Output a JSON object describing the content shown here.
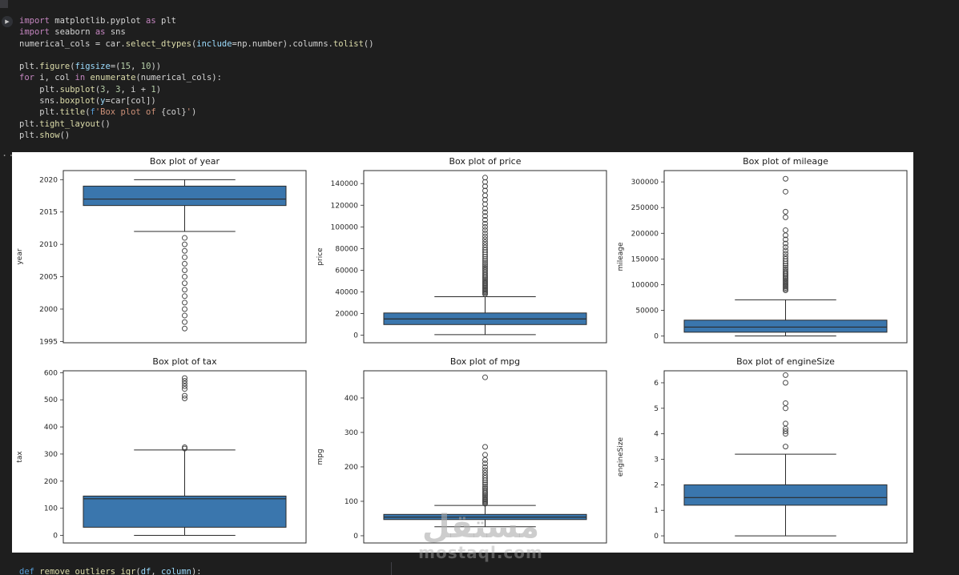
{
  "gutter": {
    "run_icon": "▶",
    "collapse_ellipsis": "..."
  },
  "watermark": {
    "arabic": "مستقل",
    "latin": "mostaql.com"
  },
  "code_cell": {
    "lines": [
      {
        "tokens": [
          [
            "kw",
            "import"
          ],
          [
            "pl",
            " matplotlib.pyplot "
          ],
          [
            "kw",
            "as"
          ],
          [
            "pl",
            " plt"
          ]
        ]
      },
      {
        "tokens": [
          [
            "kw",
            "import"
          ],
          [
            "pl",
            " seaborn "
          ],
          [
            "kw",
            "as"
          ],
          [
            "pl",
            " sns"
          ]
        ]
      },
      {
        "tokens": [
          [
            "pl",
            "numerical_cols = car."
          ],
          [
            "fn",
            "select_dtypes"
          ],
          [
            "pl",
            "("
          ],
          [
            "id",
            "include"
          ],
          [
            "pl",
            "=np.number)."
          ],
          [
            "pl",
            "columns."
          ],
          [
            "fn",
            "tolist"
          ],
          [
            "pl",
            "()"
          ]
        ]
      },
      {
        "tokens": []
      },
      {
        "tokens": [
          [
            "pl",
            "plt."
          ],
          [
            "fn",
            "figure"
          ],
          [
            "pl",
            "("
          ],
          [
            "id",
            "figsize"
          ],
          [
            "pl",
            "=("
          ],
          [
            "num",
            "15"
          ],
          [
            "pl",
            ", "
          ],
          [
            "num",
            "10"
          ],
          [
            "pl",
            "))"
          ]
        ]
      },
      {
        "tokens": [
          [
            "kw",
            "for"
          ],
          [
            "pl",
            " i, col "
          ],
          [
            "kw",
            "in"
          ],
          [
            "pl",
            " "
          ],
          [
            "fn",
            "enumerate"
          ],
          [
            "pl",
            "(numerical_cols):"
          ]
        ]
      },
      {
        "tokens": [
          [
            "pl",
            "    plt."
          ],
          [
            "fn",
            "subplot"
          ],
          [
            "pl",
            "("
          ],
          [
            "num",
            "3"
          ],
          [
            "pl",
            ", "
          ],
          [
            "num",
            "3"
          ],
          [
            "pl",
            ", i + "
          ],
          [
            "num",
            "1"
          ],
          [
            "pl",
            ")"
          ]
        ]
      },
      {
        "tokens": [
          [
            "pl",
            "    sns."
          ],
          [
            "fn",
            "boxplot"
          ],
          [
            "pl",
            "("
          ],
          [
            "id",
            "y"
          ],
          [
            "pl",
            "=car[col])"
          ]
        ]
      },
      {
        "tokens": [
          [
            "pl",
            "    plt."
          ],
          [
            "fn",
            "title"
          ],
          [
            "pl",
            "("
          ],
          [
            "kwb",
            "f"
          ],
          [
            "str",
            "'Box plot of "
          ],
          [
            "pl",
            "{col}"
          ],
          [
            "str",
            "'"
          ],
          [
            "pl",
            ")"
          ]
        ]
      },
      {
        "tokens": [
          [
            "pl",
            "plt."
          ],
          [
            "fn",
            "tight_layout"
          ],
          [
            "pl",
            "()"
          ]
        ]
      },
      {
        "tokens": [
          [
            "pl",
            "plt."
          ],
          [
            "fn",
            "show"
          ],
          [
            "pl",
            "()"
          ]
        ]
      }
    ]
  },
  "next_cell": {
    "lines": [
      {
        "tokens": [
          [
            "kwb",
            "def"
          ],
          [
            "pl",
            " "
          ],
          [
            "fn",
            "remove_outliers_iqr"
          ],
          [
            "pl",
            "("
          ],
          [
            "id",
            "df"
          ],
          [
            "pl",
            ", "
          ],
          [
            "id",
            "column"
          ],
          [
            "pl",
            "):"
          ]
        ]
      }
    ]
  },
  "chart_data": {
    "type": "boxplot-grid",
    "figure_bg": "#ffffff",
    "box_fill": "#3a76ad",
    "line_color": "#2b2b2b",
    "outlier_stroke": "#4a4a4a",
    "layout": "2 rows x 3 cols",
    "plots": [
      {
        "title": "Box plot of year",
        "ylabel": "year",
        "ylim": [
          1994.8,
          2021.4
        ],
        "yticks": [
          1995,
          2000,
          2005,
          2010,
          2015,
          2020
        ],
        "box": {
          "whisker_low": 2012,
          "q1": 2016,
          "median": 2017,
          "q3": 2019,
          "whisker_high": 2020
        },
        "outliers": [
          2011,
          2010,
          2009,
          2008,
          2007,
          2006,
          2005,
          2004,
          2003,
          2002,
          2001,
          2000,
          1999,
          1998,
          1997
        ]
      },
      {
        "title": "Box plot of price",
        "ylabel": "price",
        "ylim": [
          -7000,
          152000
        ],
        "yticks": [
          0,
          20000,
          40000,
          60000,
          80000,
          100000,
          120000,
          140000
        ],
        "box": {
          "whisker_low": 450,
          "q1": 9800,
          "median": 15000,
          "q3": 20500,
          "whisker_high": 35500
        },
        "outliers": [
          37800,
          38800,
          39800,
          40800,
          41800,
          42800,
          43800,
          44800,
          45800,
          46900,
          48000,
          49100,
          50300,
          51500,
          52800,
          54100,
          55500,
          57000,
          58500,
          60000,
          61600,
          63200,
          64900,
          66700,
          68500,
          70400,
          72400,
          74400,
          76500,
          78700,
          81000,
          83400,
          85900,
          88500,
          91200,
          94000,
          97000,
          100000,
          103000,
          106500,
          110000,
          113500,
          117000,
          121000,
          125000,
          129000,
          133500,
          137500,
          141500,
          145500
        ]
      },
      {
        "title": "Box plot of mileage",
        "ylabel": "mileage",
        "ylim": [
          -13000,
          322000
        ],
        "yticks": [
          0,
          50000,
          100000,
          150000,
          200000,
          250000,
          300000
        ],
        "box": {
          "whisker_low": 200,
          "q1": 7500,
          "median": 17500,
          "q3": 31000,
          "whisker_high": 70500
        },
        "outliers": [
          89000,
          91500,
          94000,
          96500,
          99000,
          101500,
          104000,
          106500,
          109000,
          111500,
          114000,
          117000,
          120000,
          123000,
          126000,
          129500,
          133000,
          137000,
          141000,
          145500,
          150000,
          155000,
          160500,
          166500,
          173000,
          180000,
          188000,
          196000,
          206000,
          231000,
          242000,
          281000,
          306000
        ]
      },
      {
        "title": "Box plot of tax",
        "ylabel": "tax",
        "ylim": [
          -28,
          607
        ],
        "yticks": [
          0,
          100,
          200,
          300,
          400,
          500,
          600
        ],
        "box": {
          "whisker_low": 0,
          "q1": 30,
          "median": 135,
          "q3": 145,
          "whisker_high": 315
        },
        "outliers": [
          320,
          325,
          505,
          515,
          540,
          550,
          560,
          570,
          580
        ]
      },
      {
        "title": "Box plot of mpg",
        "ylabel": "mpg",
        "ylim": [
          -21,
          479
        ],
        "yticks": [
          0,
          100,
          200,
          300,
          400
        ],
        "box": {
          "whisker_low": 26,
          "q1": 47,
          "median": 54,
          "q3": 62,
          "whisker_high": 88
        },
        "outliers": [
          93,
          96,
          99,
          102,
          105,
          108,
          112,
          116,
          120,
          124,
          128,
          133,
          138,
          143,
          149,
          155,
          161,
          168,
          175,
          183,
          191,
          200,
          210,
          220,
          235,
          258,
          460
        ]
      },
      {
        "title": "Box plot of engineSize",
        "ylabel": "engineSize",
        "ylim": [
          -0.28,
          6.47
        ],
        "yticks": [
          0,
          1,
          2,
          3,
          4,
          5,
          6
        ],
        "box": {
          "whisker_low": 0,
          "q1": 1.2,
          "median": 1.5,
          "q3": 2.0,
          "whisker_high": 3.2
        },
        "outliers": [
          3.5,
          4.0,
          4.1,
          4.2,
          4.4,
          5.0,
          5.2,
          6.0,
          6.3
        ]
      }
    ]
  }
}
